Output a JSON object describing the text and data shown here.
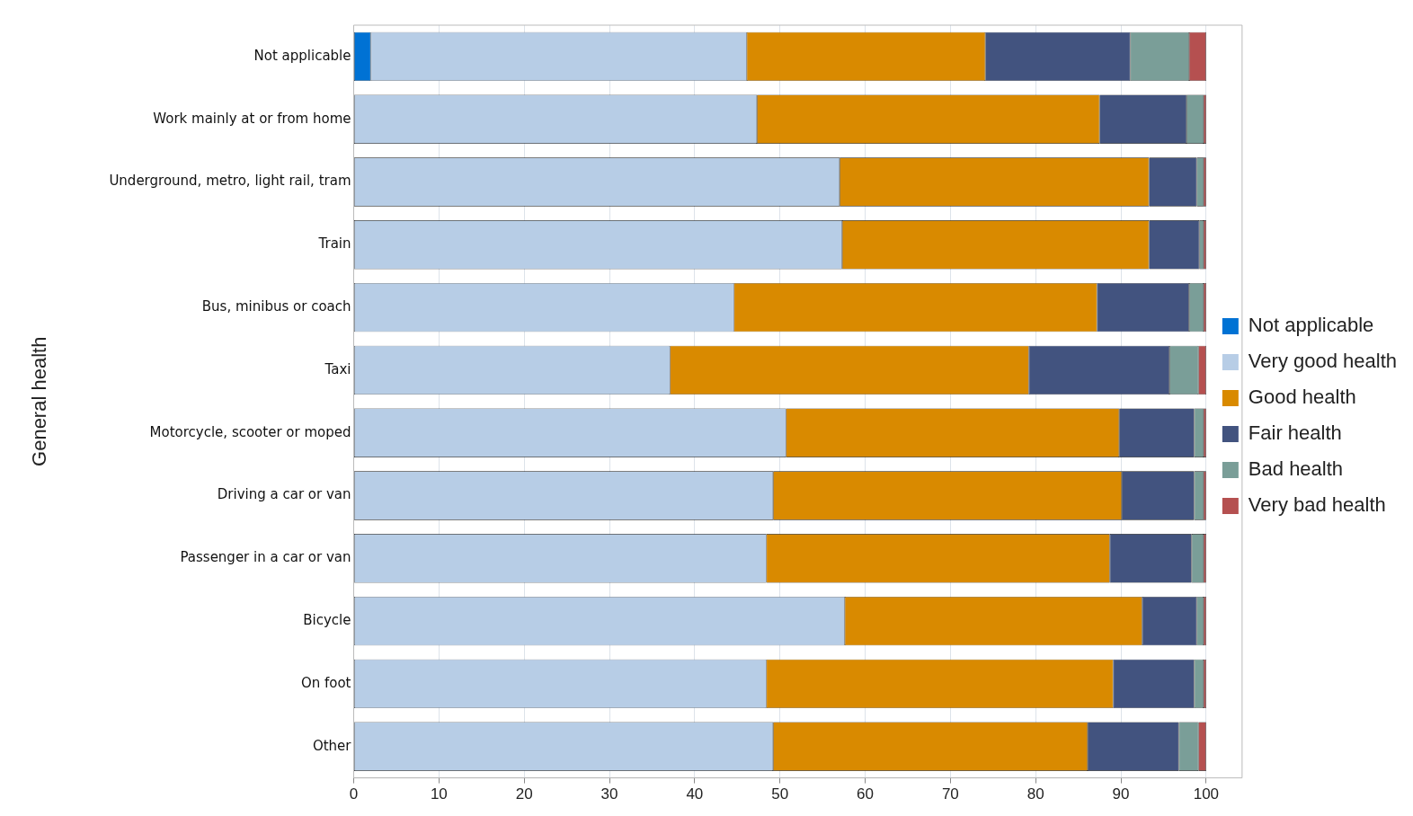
{
  "chart_data": {
    "type": "bar",
    "orientation": "horizontal",
    "stacked": true,
    "ylabel": "General health",
    "categories": [
      "Not applicable",
      "Work mainly at or from home",
      "Underground, metro, light rail, tram",
      "Train",
      "Bus, minibus or coach",
      "Taxi",
      "Motorcycle, scooter or moped",
      "Driving a car or van",
      "Passenger in a car or van",
      "Bicycle",
      "On foot",
      "Other"
    ],
    "series": [
      {
        "name": "Not applicable",
        "color": "#0072d4",
        "values": [
          2.0,
          null,
          null,
          null,
          null,
          null,
          null,
          null,
          null,
          null,
          null,
          null
        ]
      },
      {
        "name": "Very good health",
        "color": "#b7cde6",
        "values": [
          44.1,
          47.3,
          57.0,
          57.3,
          44.6,
          37.1,
          50.7,
          49.2,
          48.4,
          57.6,
          48.4,
          49.2
        ]
      },
      {
        "name": "Good health",
        "color": "#d98a00",
        "values": [
          28.0,
          40.2,
          36.3,
          36.0,
          42.6,
          42.1,
          39.1,
          40.9,
          40.3,
          34.9,
          40.7,
          36.9
        ]
      },
      {
        "name": "Fair health",
        "color": "#42537f",
        "values": [
          17.0,
          10.2,
          5.6,
          5.9,
          10.8,
          16.5,
          8.8,
          8.5,
          9.6,
          6.4,
          9.5,
          10.7
        ]
      },
      {
        "name": "Bad health",
        "color": "#7a9e98",
        "values": [
          6.9,
          2.0,
          0.8,
          0.5,
          1.7,
          3.4,
          1.1,
          1.1,
          1.4,
          0.8,
          1.1,
          2.3
        ]
      },
      {
        "name": "Very bad health",
        "color": "#b55050",
        "values": [
          2.0,
          0.3,
          0.3,
          0.3,
          0.3,
          0.9,
          0.3,
          0.3,
          0.3,
          0.3,
          0.3,
          0.9
        ]
      }
    ],
    "xlim": [
      0,
      100
    ],
    "xticks": [
      0,
      10,
      20,
      30,
      40,
      50,
      60,
      70,
      80,
      90,
      100
    ],
    "grid": "x",
    "legend": "right"
  }
}
